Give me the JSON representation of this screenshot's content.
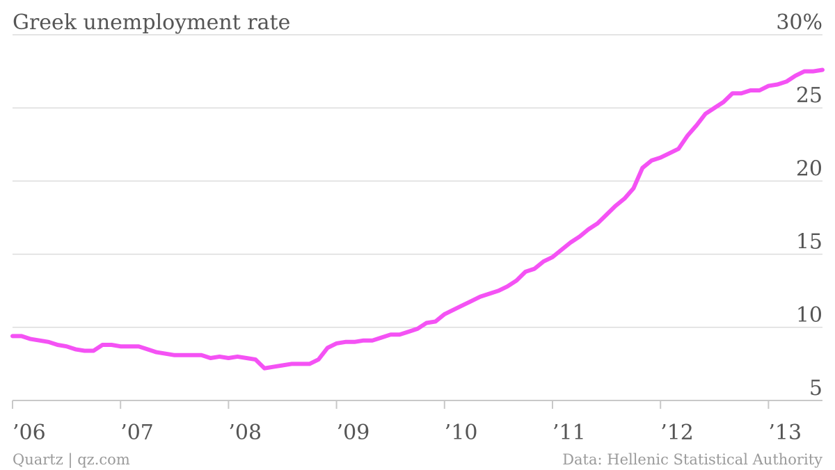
{
  "chart_data": {
    "type": "line",
    "title": "Greek unemployment rate",
    "ylim": [
      5,
      30
    ],
    "y_ticks": [
      {
        "value": 30,
        "label": "30%"
      },
      {
        "value": 25,
        "label": "25"
      },
      {
        "value": 20,
        "label": "20"
      },
      {
        "value": 15,
        "label": "15"
      },
      {
        "value": 10,
        "label": "10"
      },
      {
        "value": 5,
        "label": "5"
      }
    ],
    "x_ticks": [
      {
        "value": 2006,
        "label": "’06"
      },
      {
        "value": 2007,
        "label": "’07"
      },
      {
        "value": 2008,
        "label": "’08"
      },
      {
        "value": 2009,
        "label": "’09"
      },
      {
        "value": 2010,
        "label": "’10"
      },
      {
        "value": 2011,
        "label": "’11"
      },
      {
        "value": 2012,
        "label": "’12"
      },
      {
        "value": 2013,
        "label": "’13"
      }
    ],
    "xlim": [
      2006.0,
      2013.5
    ],
    "series": [
      {
        "color": "#f452f4",
        "x": [
          2006.0,
          2006.083,
          2006.167,
          2006.25,
          2006.333,
          2006.417,
          2006.5,
          2006.583,
          2006.667,
          2006.75,
          2006.833,
          2006.917,
          2007.0,
          2007.083,
          2007.167,
          2007.25,
          2007.333,
          2007.417,
          2007.5,
          2007.583,
          2007.667,
          2007.75,
          2007.833,
          2007.917,
          2008.0,
          2008.083,
          2008.167,
          2008.25,
          2008.333,
          2008.417,
          2008.5,
          2008.583,
          2008.667,
          2008.75,
          2008.833,
          2008.917,
          2009.0,
          2009.083,
          2009.167,
          2009.25,
          2009.333,
          2009.417,
          2009.5,
          2009.583,
          2009.667,
          2009.75,
          2009.833,
          2009.917,
          2010.0,
          2010.083,
          2010.167,
          2010.25,
          2010.333,
          2010.417,
          2010.5,
          2010.583,
          2010.667,
          2010.75,
          2010.833,
          2010.917,
          2011.0,
          2011.083,
          2011.167,
          2011.25,
          2011.333,
          2011.417,
          2011.5,
          2011.583,
          2011.667,
          2011.75,
          2011.833,
          2011.917,
          2012.0,
          2012.083,
          2012.167,
          2012.25,
          2012.333,
          2012.417,
          2012.5,
          2012.583,
          2012.667,
          2012.75,
          2012.833,
          2012.917,
          2013.0,
          2013.083,
          2013.167,
          2013.25,
          2013.333,
          2013.417,
          2013.5
        ],
        "values": [
          9.4,
          9.4,
          9.2,
          9.1,
          9.0,
          8.8,
          8.7,
          8.5,
          8.4,
          8.4,
          8.8,
          8.8,
          8.7,
          8.7,
          8.7,
          8.5,
          8.3,
          8.2,
          8.1,
          8.1,
          8.1,
          8.1,
          7.9,
          8.0,
          7.9,
          8.0,
          7.9,
          7.8,
          7.2,
          7.3,
          7.4,
          7.5,
          7.5,
          7.5,
          7.8,
          8.6,
          8.9,
          9.0,
          9.0,
          9.1,
          9.1,
          9.3,
          9.5,
          9.5,
          9.7,
          9.9,
          10.3,
          10.4,
          10.9,
          11.2,
          11.5,
          11.8,
          12.1,
          12.3,
          12.5,
          12.8,
          13.2,
          13.8,
          14.0,
          14.5,
          14.8,
          15.3,
          15.8,
          16.2,
          16.7,
          17.1,
          17.7,
          18.3,
          18.8,
          19.5,
          20.9,
          21.4,
          21.6,
          21.9,
          22.2,
          23.1,
          23.8,
          24.6,
          25.0,
          25.4,
          26.0,
          26.0,
          26.2,
          26.2,
          26.5,
          26.6,
          26.8,
          27.2,
          27.5,
          27.5,
          27.6
        ]
      }
    ],
    "grid": true,
    "footer_left": "Quartz | qz.com",
    "footer_right": "Data: Hellenic Statistical Authority"
  }
}
